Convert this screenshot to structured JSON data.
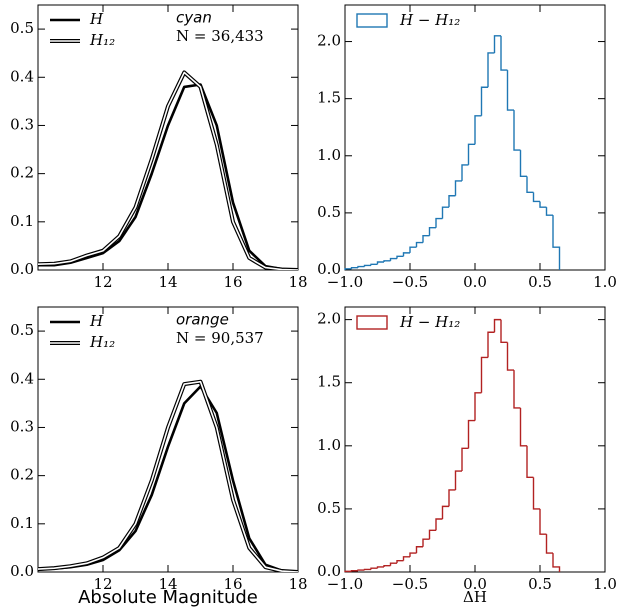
{
  "chart_data": [
    {
      "type": "line",
      "xlim": [
        10,
        18
      ],
      "ylim": [
        0,
        0.55
      ],
      "xticks": [
        12,
        14,
        16,
        18
      ],
      "yticks": [
        {
          "value": 0,
          "label": "0.0"
        },
        0.1,
        0.2,
        0.3,
        0.4,
        0.5
      ],
      "annotations": [
        "cyan",
        "N = 36,433"
      ],
      "x": [
        10,
        10.5,
        11,
        11.5,
        12,
        12.5,
        13,
        13.5,
        14,
        14.5,
        15,
        15.5,
        16,
        16.5,
        17,
        17.5,
        18
      ],
      "series": [
        {
          "name": "H",
          "color": "#000000",
          "values": [
            0.01,
            0.01,
            0.015,
            0.025,
            0.035,
            0.06,
            0.11,
            0.2,
            0.3,
            0.38,
            0.385,
            0.3,
            0.14,
            0.04,
            0.008,
            0.002,
            0
          ]
        },
        {
          "name": "H₁₂",
          "color": "#000000",
          "values": [
            0.012,
            0.013,
            0.018,
            0.03,
            0.04,
            0.07,
            0.13,
            0.23,
            0.34,
            0.41,
            0.38,
            0.26,
            0.1,
            0.025,
            0.005,
            0.001,
            0
          ]
        }
      ]
    },
    {
      "type": "histogram",
      "xlim": [
        -1,
        1
      ],
      "ylim": [
        0,
        2.32
      ],
      "xticks": [
        {
          "value": -1,
          "label": "−1.0"
        },
        {
          "value": -0.5,
          "label": "−0.5"
        },
        {
          "value": 0,
          "label": "0.0"
        },
        0.5,
        {
          "value": 1,
          "label": "1.0"
        }
      ],
      "yticks": [
        {
          "value": 0,
          "label": "0.0"
        },
        0.5,
        {
          "value": 1,
          "label": "1.0"
        },
        1.5,
        {
          "value": 2,
          "label": "2.0"
        }
      ],
      "series": [
        {
          "name": "H − H₁₂",
          "color": "#1f77b4",
          "bins": [
            -1.0,
            -0.95,
            -0.9,
            -0.85,
            -0.8,
            -0.75,
            -0.7,
            -0.65,
            -0.6,
            -0.55,
            -0.5,
            -0.45,
            -0.4,
            -0.35,
            -0.3,
            -0.25,
            -0.2,
            -0.15,
            -0.1,
            -0.05,
            0.0,
            0.05,
            0.1,
            0.15,
            0.2,
            0.25,
            0.3,
            0.35,
            0.4,
            0.45,
            0.5,
            0.55,
            0.6,
            0.65
          ],
          "values": [
            0.01,
            0.02,
            0.03,
            0.04,
            0.05,
            0.07,
            0.08,
            0.1,
            0.12,
            0.15,
            0.2,
            0.24,
            0.3,
            0.37,
            0.45,
            0.55,
            0.65,
            0.78,
            0.92,
            1.1,
            1.35,
            1.6,
            1.9,
            2.05,
            1.75,
            1.4,
            1.05,
            0.82,
            0.68,
            0.6,
            0.55,
            0.48,
            0.2
          ]
        }
      ]
    },
    {
      "type": "line",
      "xlim": [
        10,
        18
      ],
      "ylim": [
        0,
        0.55
      ],
      "xticks": [
        12,
        14,
        16,
        18
      ],
      "yticks": [
        {
          "value": 0,
          "label": "0.0"
        },
        0.1,
        0.2,
        0.3,
        0.4,
        0.5
      ],
      "annotations": [
        "orange",
        "N = 90,537"
      ],
      "x_label": "Absolute Magnitude",
      "x": [
        10,
        10.5,
        11,
        11.5,
        12,
        12.5,
        13,
        13.5,
        14,
        14.5,
        15,
        15.5,
        16,
        16.5,
        17,
        17.5,
        18
      ],
      "series": [
        {
          "name": "H",
          "color": "#000000",
          "values": [
            0.005,
            0.007,
            0.01,
            0.015,
            0.025,
            0.045,
            0.085,
            0.16,
            0.26,
            0.35,
            0.385,
            0.33,
            0.19,
            0.07,
            0.015,
            0.003,
            0
          ]
        },
        {
          "name": "H₁₂",
          "color": "#000000",
          "values": [
            0.006,
            0.008,
            0.012,
            0.018,
            0.03,
            0.05,
            0.1,
            0.19,
            0.3,
            0.39,
            0.395,
            0.3,
            0.15,
            0.05,
            0.01,
            0.002,
            0
          ]
        }
      ]
    },
    {
      "type": "histogram",
      "xlim": [
        -1,
        1
      ],
      "ylim": [
        0,
        2.1
      ],
      "xticks": [
        {
          "value": -1,
          "label": "−1.0"
        },
        {
          "value": -0.5,
          "label": "−0.5"
        },
        {
          "value": 0,
          "label": "0.0"
        },
        0.5,
        {
          "value": 1,
          "label": "1.0"
        }
      ],
      "yticks": [
        {
          "value": 0,
          "label": "0.0"
        },
        0.5,
        {
          "value": 1,
          "label": "1.0"
        },
        1.5,
        {
          "value": 2,
          "label": "2.0"
        }
      ],
      "x_label": "ΔH",
      "series": [
        {
          "name": "H − H₁₂",
          "color": "#b22222",
          "bins": [
            -1.0,
            -0.95,
            -0.9,
            -0.85,
            -0.8,
            -0.75,
            -0.7,
            -0.65,
            -0.6,
            -0.55,
            -0.5,
            -0.45,
            -0.4,
            -0.35,
            -0.3,
            -0.25,
            -0.2,
            -0.15,
            -0.1,
            -0.05,
            0.0,
            0.05,
            0.1,
            0.15,
            0.2,
            0.25,
            0.3,
            0.35,
            0.4,
            0.45,
            0.5,
            0.55,
            0.6,
            0.65
          ],
          "values": [
            0.005,
            0.01,
            0.015,
            0.02,
            0.03,
            0.04,
            0.05,
            0.07,
            0.09,
            0.12,
            0.15,
            0.2,
            0.26,
            0.33,
            0.42,
            0.52,
            0.65,
            0.8,
            0.98,
            1.2,
            1.42,
            1.7,
            1.9,
            2.0,
            1.82,
            1.6,
            1.3,
            1.0,
            0.75,
            0.5,
            0.3,
            0.15,
            0.04
          ]
        }
      ]
    }
  ]
}
